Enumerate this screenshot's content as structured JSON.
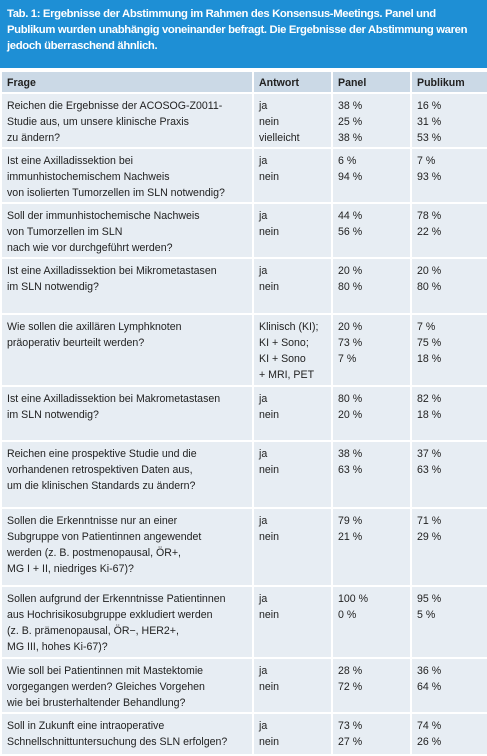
{
  "caption": {
    "label": "Tab. 1:",
    "lines": [
      "Ergebnisse der Abstimmung im Rahmen des Konsensus-Meetings. Panel und",
      "Publikum wurden unabhängig voneinander befragt. Die Ergebnisse der Abstimmung waren",
      "jedoch überraschend ähnlich."
    ]
  },
  "table": {
    "headers": [
      "Frage",
      "Antwort",
      "Panel",
      "Publikum"
    ],
    "rows": [
      {
        "question": [
          "Reichen die Ergebnisse der ACOSOG-Z0011-",
          "Studie aus, um unsere klinische Praxis",
          "zu ändern?"
        ],
        "answers": [
          "ja",
          "nein",
          "vielleicht"
        ],
        "panel": [
          "38 %",
          "25 %",
          "38 %"
        ],
        "publikum": [
          "16 %",
          "31 %",
          "53 %"
        ]
      },
      {
        "question": [
          "Ist eine Axilladissektion bei",
          "immunhistochemischem Nachweis",
          "von isolierten Tumorzellen im SLN notwendig?"
        ],
        "answers": [
          "ja",
          "nein"
        ],
        "panel": [
          "6 %",
          "94 %"
        ],
        "publikum": [
          "7 %",
          "93 %"
        ]
      },
      {
        "question": [
          "Soll der immunhistochemische Nachweis",
          "von Tumorzellen im SLN",
          "nach wie vor durchgeführt werden?"
        ],
        "answers": [
          "ja",
          "nein"
        ],
        "panel": [
          "44 %",
          "56 %"
        ],
        "publikum": [
          "78 %",
          "22 %"
        ]
      },
      {
        "question": [
          "Ist eine Axilladissektion bei Mikrometastasen",
          "im SLN notwendig?"
        ],
        "answers": [
          "ja",
          "nein"
        ],
        "panel": [
          "20 %",
          "80 %"
        ],
        "publikum": [
          "20 %",
          "80 %"
        ]
      },
      {
        "question": [
          "Wie sollen die axillären Lymphknoten",
          "präoperativ beurteilt werden?"
        ],
        "answers": [
          "Klinisch (KI);",
          "KI + Sono;",
          "KI + Sono",
          "+ MRI, PET"
        ],
        "panel": [
          "20 %",
          "73 %",
          "7 %"
        ],
        "publikum": [
          "7 %",
          "75 %",
          "18 %"
        ]
      },
      {
        "question": [
          "Ist eine Axilladissektion bei Makrometastasen",
          "im SLN notwendig?"
        ],
        "answers": [
          "ja",
          "nein"
        ],
        "panel": [
          "80 %",
          "20 %"
        ],
        "publikum": [
          "82 %",
          "18 %"
        ]
      },
      {
        "question": [
          "Reichen eine prospektive Studie und die",
          "vorhandenen retrospektiven Daten aus,",
          "um die klinischen Standards zu ändern?"
        ],
        "answers": [
          "ja",
          "nein"
        ],
        "panel": [
          "38 %",
          "63 %"
        ],
        "publikum": [
          "37 %",
          "63 %"
        ]
      },
      {
        "question": [
          "Sollen die Erkenntnisse nur an einer",
          "Subgruppe von Patientinnen angewendet",
          "werden (z. B. postmenopausal, ÖR+,",
          "MG I + II, niedriges Ki-67)?"
        ],
        "answers": [
          "ja",
          "nein"
        ],
        "panel": [
          "79 %",
          "21 %"
        ],
        "publikum": [
          "71 %",
          "29 %"
        ]
      },
      {
        "question": [
          "Sollen aufgrund der Erkenntnisse Patientinnen",
          "aus Hochrisikosubgruppe exkludiert werden",
          "(z. B. prämenopausal, ÖR−, HER2+,",
          "MG III, hohes Ki-67)?"
        ],
        "answers": [
          "ja",
          "nein"
        ],
        "panel": [
          "100 %",
          "0 %"
        ],
        "publikum": [
          "95 %",
          "5 %"
        ]
      },
      {
        "question": [
          "Wie soll bei Patientinnen mit Mastektomie",
          "vorgegangen werden? Gleiches Vorgehen",
          "wie bei brusterhaltender Behandlung?"
        ],
        "answers": [
          "ja",
          "nein"
        ],
        "panel": [
          "28 %",
          "72 %"
        ],
        "publikum": [
          "36 %",
          "64 %"
        ]
      },
      {
        "question": [
          "Soll in Zukunft eine intraoperative",
          "Schnellschnittuntersuchung des SLN erfolgen?"
        ],
        "answers": [
          "ja",
          "nein"
        ],
        "panel": [
          "73 %",
          "27 %"
        ],
        "publikum": [
          "74 %",
          "26 %"
        ]
      }
    ]
  }
}
